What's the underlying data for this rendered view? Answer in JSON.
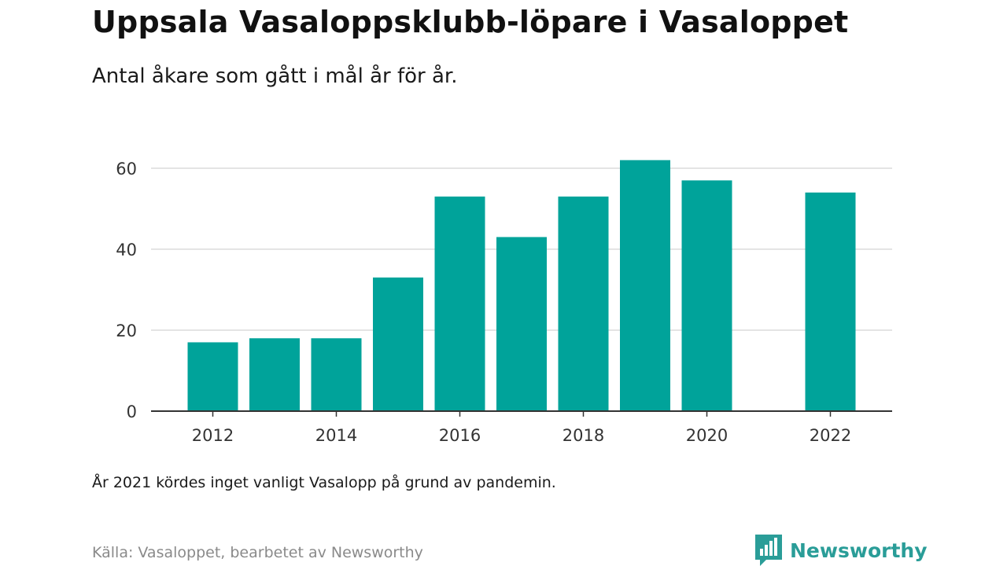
{
  "chart_data": {
    "type": "bar",
    "title": "Uppsala Vasaloppsklubb-löpare i Vasaloppet",
    "subtitle": "Antal åkare som gått i mål år för år.",
    "x": [
      2012,
      2013,
      2014,
      2015,
      2016,
      2017,
      2018,
      2019,
      2020,
      2022
    ],
    "values": [
      17,
      18,
      18,
      33,
      53,
      43,
      53,
      62,
      57,
      54
    ],
    "x_ticks": [
      "2012",
      "2014",
      "2016",
      "2018",
      "2020",
      "2022"
    ],
    "y_ticks": [
      "0",
      "20",
      "40",
      "60"
    ],
    "xlim": [
      2011,
      2023
    ],
    "ylim": [
      0,
      60
    ],
    "grid": "horizontal",
    "bar_color": "#00a39a",
    "note": "År 2021 kördes inget vanligt Vasalopp på grund av pandemin.",
    "source": "Källa: Vasaloppet, bearbetet av Newsworthy"
  },
  "brand": {
    "name": "Newsworthy",
    "icon": "newsworthy-bar-chart-icon",
    "color": "#2a9d98"
  }
}
